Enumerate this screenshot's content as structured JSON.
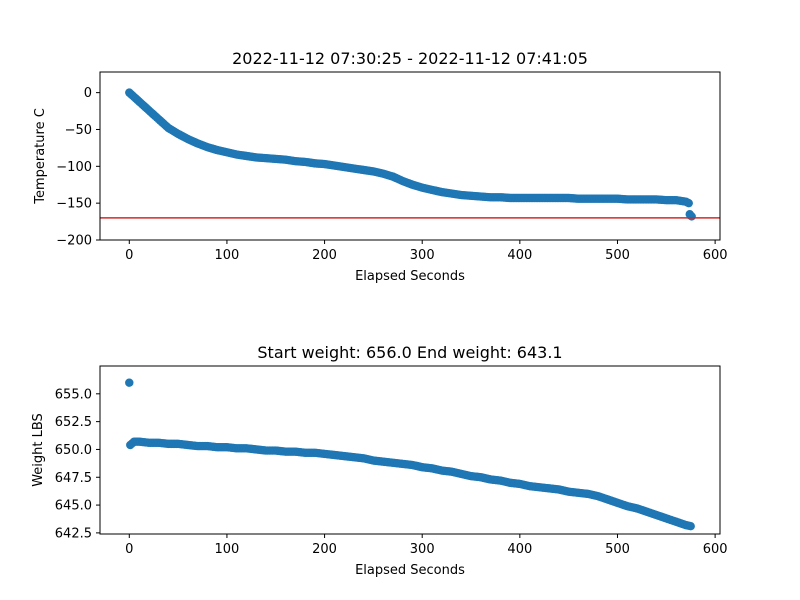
{
  "chart_data": [
    {
      "type": "scatter",
      "title": "2022-11-12 07:30:25 - 2022-11-12 07:41:05",
      "xlabel": "Elapsed Seconds",
      "ylabel": "Temperature C",
      "xlim": [
        -30,
        605
      ],
      "ylim": [
        -200,
        28
      ],
      "xticks": [
        0,
        100,
        200,
        300,
        400,
        500,
        600
      ],
      "yticks": [
        0,
        -50,
        -100,
        -150,
        -200
      ],
      "ytick_labels": [
        "0",
        "−50",
        "−100",
        "−150",
        "−200"
      ],
      "marker_color": "#1f77b4",
      "reference_line": {
        "y": -170,
        "color": "#d62728"
      },
      "x": [
        0,
        10,
        20,
        30,
        40,
        50,
        60,
        70,
        80,
        90,
        100,
        110,
        120,
        130,
        140,
        150,
        160,
        170,
        180,
        190,
        200,
        210,
        220,
        230,
        240,
        250,
        260,
        270,
        280,
        290,
        300,
        310,
        320,
        330,
        340,
        350,
        360,
        370,
        380,
        390,
        400,
        410,
        420,
        430,
        440,
        450,
        460,
        470,
        480,
        490,
        500,
        510,
        520,
        530,
        540,
        550,
        560,
        565,
        570,
        573,
        574,
        575,
        576
      ],
      "y": [
        0,
        -12,
        -24,
        -36,
        -48,
        -56,
        -63,
        -69,
        -74,
        -78,
        -81,
        -84,
        -86,
        -88,
        -89,
        -90,
        -91,
        -93,
        -94,
        -96,
        -97,
        -99,
        -101,
        -103,
        -105,
        -107,
        -110,
        -114,
        -120,
        -125,
        -129,
        -132,
        -135,
        -137,
        -139,
        -140,
        -141,
        -142,
        -142,
        -143,
        -143,
        -143,
        -143,
        -143,
        -143,
        -143,
        -144,
        -144,
        -144,
        -144,
        -144,
        -145,
        -145,
        -145,
        -145,
        -146,
        -146,
        -147,
        -148,
        -150,
        -165,
        -167,
        -168
      ]
    },
    {
      "type": "scatter",
      "title": "Start weight: 656.0 End weight: 643.1",
      "xlabel": "Elapsed Seconds",
      "ylabel": "Weight LBS",
      "xlim": [
        -30,
        605
      ],
      "ylim": [
        642.4,
        657.5
      ],
      "xticks": [
        0,
        100,
        200,
        300,
        400,
        500,
        600
      ],
      "yticks": [
        642.5,
        645.0,
        647.5,
        650.0,
        652.5,
        655.0
      ],
      "ytick_labels": [
        "642.5",
        "645.0",
        "647.5",
        "650.0",
        "652.5",
        "655.0"
      ],
      "marker_color": "#1f77b4",
      "x": [
        0,
        1,
        5,
        10,
        20,
        30,
        40,
        50,
        60,
        70,
        80,
        90,
        100,
        110,
        120,
        130,
        140,
        150,
        160,
        170,
        180,
        190,
        200,
        210,
        220,
        230,
        240,
        250,
        260,
        270,
        280,
        290,
        300,
        310,
        320,
        330,
        340,
        350,
        360,
        370,
        380,
        390,
        400,
        410,
        420,
        430,
        440,
        450,
        460,
        470,
        480,
        490,
        500,
        510,
        520,
        530,
        540,
        550,
        560,
        570,
        575
      ],
      "y": [
        656.0,
        650.4,
        650.7,
        650.7,
        650.6,
        650.6,
        650.5,
        650.5,
        650.4,
        650.3,
        650.3,
        650.2,
        650.2,
        650.1,
        650.1,
        650.0,
        649.9,
        649.9,
        649.8,
        649.8,
        649.7,
        649.7,
        649.6,
        649.5,
        649.4,
        649.3,
        649.2,
        649.0,
        648.9,
        648.8,
        648.7,
        648.6,
        648.4,
        648.3,
        648.1,
        648.0,
        647.8,
        647.6,
        647.5,
        647.3,
        647.2,
        647.0,
        646.9,
        646.7,
        646.6,
        646.5,
        646.4,
        646.2,
        646.1,
        646.0,
        645.8,
        645.5,
        645.2,
        644.9,
        644.7,
        644.4,
        644.1,
        643.8,
        643.5,
        643.2,
        643.1
      ]
    }
  ]
}
